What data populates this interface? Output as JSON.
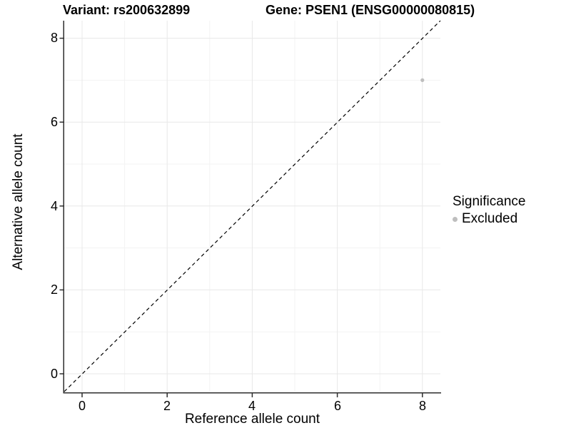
{
  "chart_data": {
    "type": "scatter",
    "titles": {
      "variant": "Variant: rs200632899",
      "gene": "Gene: PSEN1 (ENSG00000080815)"
    },
    "xlabel": "Reference allele count",
    "ylabel": "Alternative allele count",
    "xlim": [
      -0.42,
      8.42
    ],
    "ylim": [
      -0.42,
      8.42
    ],
    "x_ticks": [
      0,
      2,
      4,
      6,
      8
    ],
    "y_ticks": [
      0,
      2,
      4,
      6,
      8
    ],
    "x_tick_labels": [
      "0",
      "2",
      "4",
      "6",
      "8"
    ],
    "y_tick_labels": [
      "0",
      "2",
      "4",
      "6",
      "8"
    ],
    "grid": "major gridlines at even values, minor at odd values, both light gray, white background",
    "points": [
      {
        "x": 8,
        "y": 7,
        "significance": "Excluded",
        "color": "#bebebe"
      }
    ],
    "reference_line": {
      "kind": "identity y=x diagonal",
      "style": "dashed",
      "color": "#000000"
    },
    "legend": {
      "title": "Significance",
      "position": "right",
      "entries": [
        {
          "label": "Excluded",
          "color": "#bebebe"
        }
      ]
    }
  },
  "colors": {
    "point_excluded": "#bebebe",
    "axis_line": "#2e2e2e",
    "grid_major": "#e8e8e8",
    "grid_minor": "#f3f3f3",
    "background": "#ffffff"
  }
}
